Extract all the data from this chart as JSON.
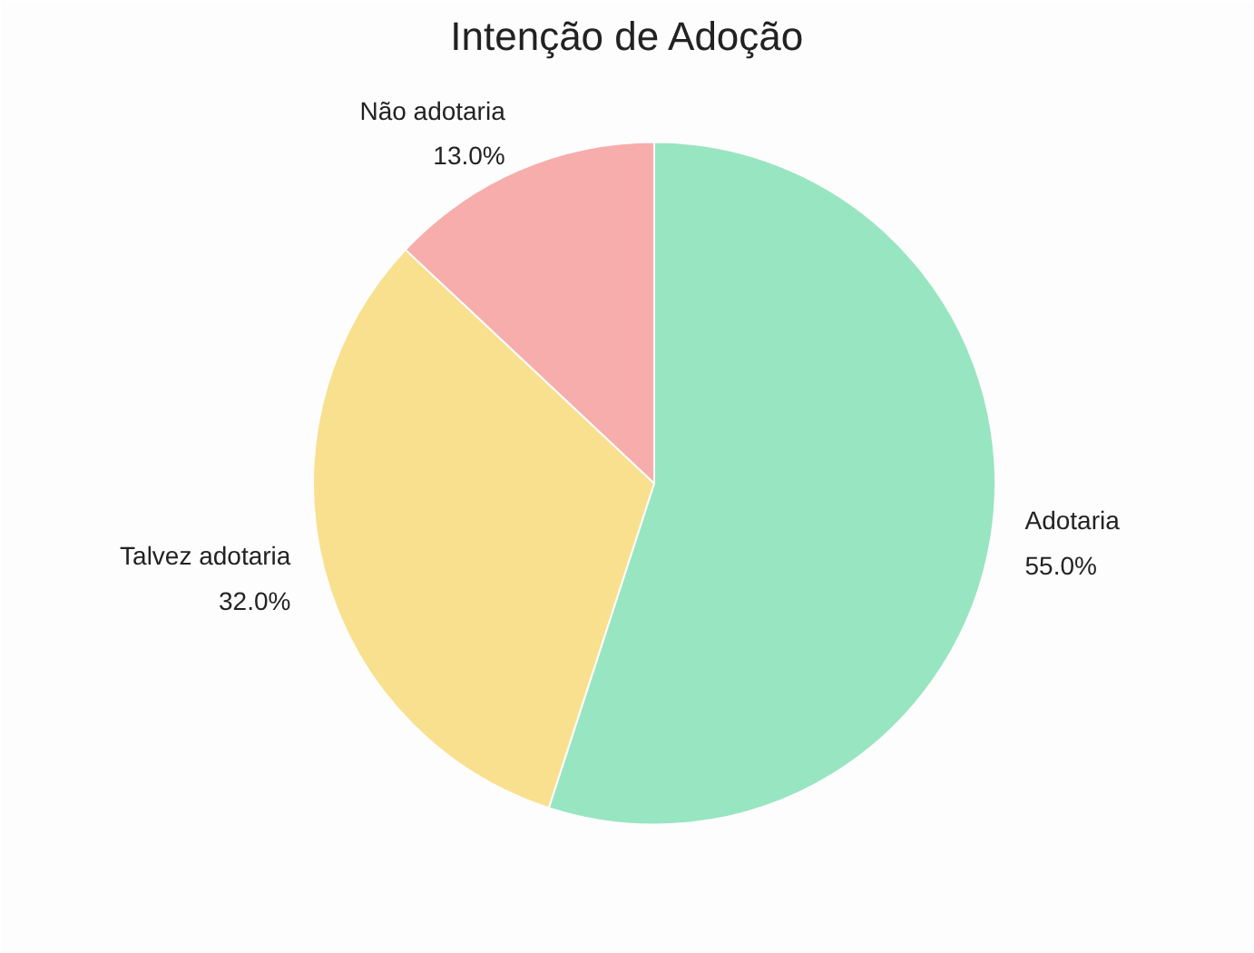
{
  "chart_data": {
    "type": "pie",
    "title": "Intenção de Adoção",
    "categories": [
      "Adotaria",
      "Talvez adotaria",
      "Não adotaria"
    ],
    "values": [
      55,
      32,
      13
    ],
    "value_labels": [
      "55.0%",
      "32.0%",
      "13.0%"
    ],
    "colors": [
      "#98e5c1",
      "#f8e08e",
      "#f6adac"
    ]
  }
}
